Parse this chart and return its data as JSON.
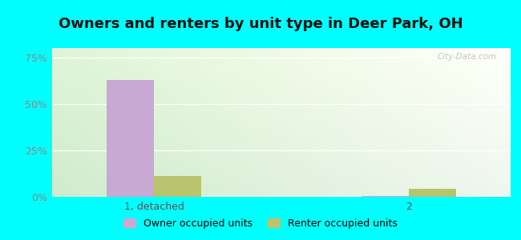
{
  "title": "Owners and renters by unit type in Deer Park, OH",
  "categories": [
    "1, detached",
    "2"
  ],
  "owner_values": [
    63.0,
    0.5
  ],
  "renter_values": [
    11.0,
    4.5
  ],
  "owner_color": "#c9a8d4",
  "renter_color": "#b8c46e",
  "yticks": [
    0,
    25,
    50,
    75
  ],
  "ytick_labels": [
    "0%",
    "25%",
    "50%",
    "75%"
  ],
  "ylim": [
    0,
    80
  ],
  "outer_bg": "#00ffff",
  "watermark": "City-Data.com",
  "legend_owner": "Owner occupied units",
  "legend_renter": "Renter occupied units",
  "bar_width": 0.28,
  "title_fontsize": 13,
  "tick_fontsize": 9,
  "legend_fontsize": 9
}
